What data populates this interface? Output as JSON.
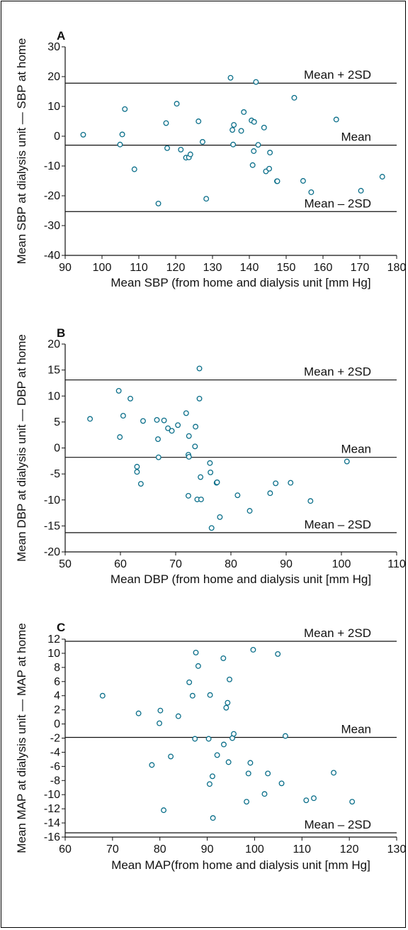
{
  "chart_data": [
    {
      "type": "scatter",
      "panel": "A",
      "xlabel": "Mean SBP (from home and dialysis unit [mm Hg]",
      "ylabel": "Mean SBP at dialysis unit — SBP at home",
      "xlim": [
        90,
        180
      ],
      "ylim": [
        -40,
        30
      ],
      "xticks": [
        90,
        100,
        110,
        120,
        130,
        140,
        150,
        160,
        170,
        180
      ],
      "yticks": [
        -40,
        -30,
        -20,
        -10,
        0,
        10,
        20,
        30
      ],
      "reference_lines": [
        {
          "label": "Mean + 2SD",
          "value": 17.8
        },
        {
          "label": "Mean",
          "value": -3
        },
        {
          "label": "Mean – 2SD",
          "value": -25.3
        }
      ],
      "points": [
        [
          94.9,
          0.5
        ],
        [
          104.9,
          -2.8
        ],
        [
          105.5,
          0.6
        ],
        [
          106.2,
          9.1
        ],
        [
          108.8,
          -11.1
        ],
        [
          115.3,
          -22.6
        ],
        [
          117.4,
          4.4
        ],
        [
          117.7,
          -4.0
        ],
        [
          120.3,
          10.9
        ],
        [
          121.4,
          -4.5
        ],
        [
          122.8,
          -7.2
        ],
        [
          123.6,
          -7.1
        ],
        [
          124.0,
          -6.1
        ],
        [
          126.2,
          5.0
        ],
        [
          127.3,
          -1.9
        ],
        [
          128.3,
          -21.0
        ],
        [
          134.9,
          19.6
        ],
        [
          135.4,
          2.1
        ],
        [
          135.6,
          -2.8
        ],
        [
          135.8,
          3.8
        ],
        [
          137.8,
          1.8
        ],
        [
          138.5,
          8.1
        ],
        [
          140.6,
          5.3
        ],
        [
          140.9,
          -9.7
        ],
        [
          141.2,
          -5.0
        ],
        [
          141.3,
          4.8
        ],
        [
          141.8,
          18.2
        ],
        [
          142.4,
          -2.9
        ],
        [
          144.0,
          2.9
        ],
        [
          144.5,
          -11.8
        ],
        [
          145.4,
          -10.9
        ],
        [
          145.6,
          -5.5
        ],
        [
          147.5,
          -15.1
        ],
        [
          147.6,
          -15.1
        ],
        [
          152.2,
          12.9
        ],
        [
          154.6,
          -15.0
        ],
        [
          156.8,
          -18.8
        ],
        [
          163.6,
          5.6
        ],
        [
          170.3,
          -18.3
        ],
        [
          176.1,
          -13.6
        ]
      ]
    },
    {
      "type": "scatter",
      "panel": "B",
      "xlabel": "Mean DBP (from home and dialysis unit [mm Hg]",
      "ylabel": "Mean DBP at dialysis unit — DBP at home",
      "xlim": [
        50,
        110
      ],
      "ylim": [
        -20,
        20
      ],
      "xticks": [
        50,
        60,
        70,
        80,
        90,
        100,
        110
      ],
      "yticks": [
        -20,
        -15,
        -10,
        -5,
        0,
        5,
        10,
        15,
        20
      ],
      "reference_lines": [
        {
          "label": "Mean + 2SD",
          "value": 13.1
        },
        {
          "label": "Mean",
          "value": -1.8
        },
        {
          "label": "Mean – 2SD",
          "value": -16.3
        }
      ],
      "points": [
        [
          54.5,
          5.6
        ],
        [
          59.7,
          11.0
        ],
        [
          59.9,
          2.1
        ],
        [
          60.5,
          6.2
        ],
        [
          61.8,
          9.5
        ],
        [
          63.0,
          -3.6
        ],
        [
          63.0,
          -4.6
        ],
        [
          63.7,
          -6.9
        ],
        [
          64.1,
          5.2
        ],
        [
          66.6,
          5.4
        ],
        [
          66.8,
          1.7
        ],
        [
          66.9,
          -1.8
        ],
        [
          67.9,
          5.3
        ],
        [
          68.6,
          3.8
        ],
        [
          69.3,
          3.3
        ],
        [
          70.4,
          4.4
        ],
        [
          71.9,
          6.7
        ],
        [
          72.3,
          -9.2
        ],
        [
          72.3,
          -1.3
        ],
        [
          72.4,
          -1.7
        ],
        [
          72.4,
          2.3
        ],
        [
          73.5,
          0.3
        ],
        [
          73.6,
          4.1
        ],
        [
          73.9,
          -9.9
        ],
        [
          74.3,
          9.5
        ],
        [
          74.3,
          15.3
        ],
        [
          74.5,
          -5.6
        ],
        [
          74.6,
          -9.9
        ],
        [
          76.2,
          -2.9
        ],
        [
          76.3,
          -4.7
        ],
        [
          76.5,
          -15.4
        ],
        [
          77.4,
          -6.7
        ],
        [
          77.5,
          -6.6
        ],
        [
          78.0,
          -13.3
        ],
        [
          81.2,
          -9.1
        ],
        [
          83.4,
          -12.1
        ],
        [
          87.1,
          -8.7
        ],
        [
          88.1,
          -6.8
        ],
        [
          90.8,
          -6.7
        ],
        [
          94.4,
          -10.2
        ],
        [
          101.0,
          -2.6
        ]
      ]
    },
    {
      "type": "scatter",
      "panel": "C",
      "xlabel": "Mean MAP(from home and dialysis unit [mm Hg]",
      "ylabel": "Mean MAP at dialysis unit — MAP at home",
      "xlim": [
        60,
        130
      ],
      "ylim": [
        -16,
        12
      ],
      "xticks": [
        60,
        70,
        80,
        90,
        100,
        110,
        120,
        130
      ],
      "yticks": [
        -16,
        -14,
        -12,
        -10,
        -8,
        -6,
        -4,
        -2,
        0,
        2,
        4,
        6,
        8,
        10,
        12
      ],
      "reference_lines": [
        {
          "label": "Mean + 2SD",
          "value": 11.7
        },
        {
          "label": "Mean",
          "value": -1.9
        },
        {
          "label": "Mean – 2SD",
          "value": -15.4
        }
      ],
      "points": [
        [
          67.9,
          4.0
        ],
        [
          75.5,
          1.5
        ],
        [
          78.3,
          -5.8
        ],
        [
          79.9,
          0.1
        ],
        [
          80.1,
          1.9
        ],
        [
          80.8,
          -12.2
        ],
        [
          82.3,
          -4.6
        ],
        [
          83.9,
          1.1
        ],
        [
          86.2,
          5.9
        ],
        [
          86.9,
          4.0
        ],
        [
          87.4,
          -2.1
        ],
        [
          87.6,
          10.1
        ],
        [
          88.1,
          8.2
        ],
        [
          90.3,
          -2.1
        ],
        [
          90.5,
          -8.5
        ],
        [
          90.6,
          4.1
        ],
        [
          91.1,
          -7.4
        ],
        [
          91.2,
          -13.3
        ],
        [
          92.1,
          -4.4
        ],
        [
          93.4,
          9.3
        ],
        [
          93.5,
          -2.9
        ],
        [
          94.0,
          2.3
        ],
        [
          94.3,
          3.0
        ],
        [
          94.5,
          -5.4
        ],
        [
          94.7,
          6.3
        ],
        [
          95.3,
          -2.0
        ],
        [
          95.6,
          -1.4
        ],
        [
          98.3,
          -11.0
        ],
        [
          98.7,
          -7.0
        ],
        [
          99.1,
          -5.5
        ],
        [
          99.7,
          10.5
        ],
        [
          102.1,
          -9.9
        ],
        [
          102.8,
          -7.0
        ],
        [
          104.9,
          9.9
        ],
        [
          105.7,
          -8.4
        ],
        [
          106.5,
          -1.7
        ],
        [
          110.9,
          -10.8
        ],
        [
          112.5,
          -10.5
        ],
        [
          116.7,
          -6.9
        ],
        [
          120.6,
          -11.0
        ]
      ]
    }
  ],
  "colors": {
    "marker": "#0b6f8a",
    "lines": "#111111",
    "text": "#111111"
  }
}
